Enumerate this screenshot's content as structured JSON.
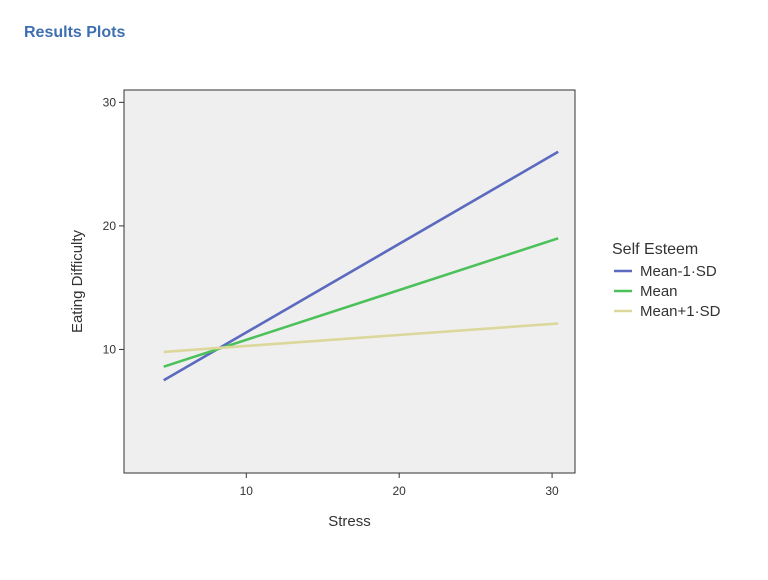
{
  "page": {
    "section_title": "Results Plots"
  },
  "chart_data": {
    "type": "line",
    "title": "",
    "xlabel": "Stress",
    "ylabel": "Eating Difficulty",
    "xlim": [
      2,
      31.5
    ],
    "ylim": [
      0,
      31
    ],
    "xticks": [
      10,
      20,
      30
    ],
    "yticks": [
      10,
      20,
      30
    ],
    "grid": false,
    "legend": {
      "title": "Self Esteem",
      "placement": "right"
    },
    "series": [
      {
        "name": "Mean-1·SD",
        "color": "#5b6abf",
        "x": [
          4.6,
          30.4
        ],
        "y": [
          7.5,
          26.0
        ]
      },
      {
        "name": "Mean",
        "color": "#4cc15a",
        "x": [
          4.6,
          30.4
        ],
        "y": [
          8.6,
          19.0
        ]
      },
      {
        "name": "Mean+1·SD",
        "color": "#dcd79a",
        "x": [
          4.6,
          30.4
        ],
        "y": [
          9.8,
          12.1
        ]
      }
    ],
    "colors": {
      "panel_bg": "#efefef",
      "axis": "#333333",
      "title": "#3e6fb0"
    }
  }
}
